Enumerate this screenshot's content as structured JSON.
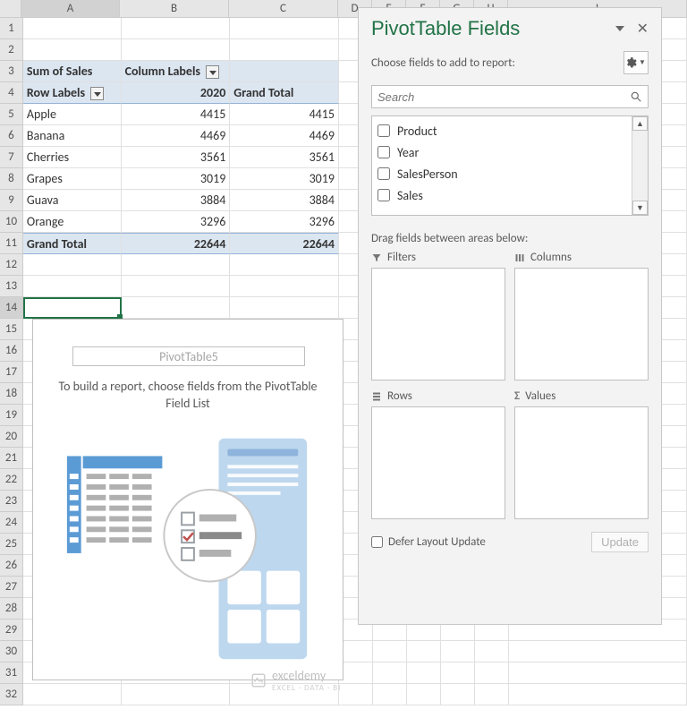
{
  "columns": {
    "headers": [
      "A",
      "B",
      "C",
      "D",
      "E",
      "F",
      "G",
      "H",
      "I"
    ],
    "widths": [
      110,
      122,
      122,
      38,
      38,
      38,
      38,
      38,
      200
    ],
    "selected_index": 0
  },
  "rows": {
    "count": 32,
    "height": 24,
    "selected_index": 14
  },
  "pivot1": {
    "cells": {
      "A3": "Sum of Sales",
      "B3": "Column Labels",
      "A4": "Row Labels",
      "B4": "2020",
      "C4": "Grand Total",
      "A11": "Grand Total",
      "B11": "22644",
      "C11": "22644"
    },
    "data_rows": [
      {
        "label": "Apple",
        "val": "4415",
        "tot": "4415"
      },
      {
        "label": "Banana",
        "val": "4469",
        "tot": "4469"
      },
      {
        "label": "Cherries",
        "val": "3561",
        "tot": "3561"
      },
      {
        "label": "Grapes",
        "val": "3019",
        "tot": "3019"
      },
      {
        "label": "Guava",
        "val": "3884",
        "tot": "3884"
      },
      {
        "label": "Orange",
        "val": "3296",
        "tot": "3296"
      }
    ]
  },
  "pivot2": {
    "name": "PivotTable5",
    "hint": "To build a report, choose fields from the PivotTable Field List"
  },
  "pane": {
    "title": "PivotTable Fields",
    "subtitle": "Choose fields to add to report:",
    "search_placeholder": "Search",
    "fields": [
      "Product",
      "Year",
      "SalesPerson",
      "Sales"
    ],
    "areas_label": "Drag fields between areas below:",
    "area_filters": "Filters",
    "area_columns": "Columns",
    "area_rows": "Rows",
    "area_values": "Values",
    "defer_label": "Defer Layout Update",
    "update_label": "Update"
  },
  "watermark": {
    "brand": "exceldemy",
    "tagline": "EXCEL · DATA · BI"
  },
  "colors": {
    "accent": "#217346",
    "pivot_header_bg": "#dce6f1",
    "pivot_border": "#95b3d7",
    "pane_bg": "#f3f3f3",
    "grid_line": "#e0e0e0",
    "header_bg": "#e6e6e6",
    "illus_blue": "#5b9bd5",
    "illus_light": "#bdd7ee",
    "illus_gray": "#b0b0b0"
  }
}
